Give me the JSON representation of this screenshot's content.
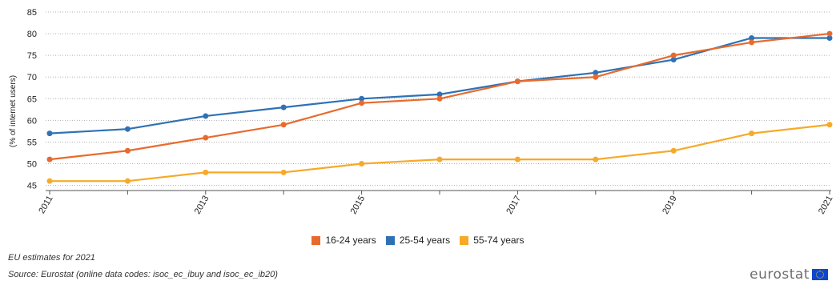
{
  "chart_data": {
    "type": "line",
    "title": "",
    "xlabel": "",
    "ylabel": "(% of internet users)",
    "ylim": [
      44,
      85
    ],
    "yticks": [
      45,
      50,
      55,
      60,
      65,
      70,
      75,
      80,
      85
    ],
    "x": [
      2011,
      2012,
      2013,
      2014,
      2015,
      2016,
      2017,
      2018,
      2019,
      2020,
      2021
    ],
    "xtick_labels": [
      "2011",
      "2013",
      "2015",
      "2017",
      "2019",
      "2021"
    ],
    "grid": "horizontal-dotted",
    "legend_position": "bottom-center",
    "series": [
      {
        "name": "16-24 years",
        "color": "#e96a2c",
        "values": [
          51,
          53,
          56,
          59,
          64,
          65,
          69,
          70,
          75,
          78,
          80
        ]
      },
      {
        "name": "25-54 years",
        "color": "#2e72b5",
        "values": [
          57,
          58,
          61,
          63,
          65,
          66,
          69,
          71,
          74,
          79,
          79
        ]
      },
      {
        "name": "55-74 years",
        "color": "#f7a928",
        "values": [
          46,
          46,
          48,
          48,
          50,
          51,
          51,
          51,
          53,
          57,
          59
        ]
      }
    ]
  },
  "notes": {
    "estimate": "EU estimates for 2021",
    "source": "Source: Eurostat (online data codes: isoc_ec_ibuy and isoc_ec_ib20)"
  },
  "logo": {
    "text": "eurostat",
    "icon": "eu-flag-icon"
  }
}
